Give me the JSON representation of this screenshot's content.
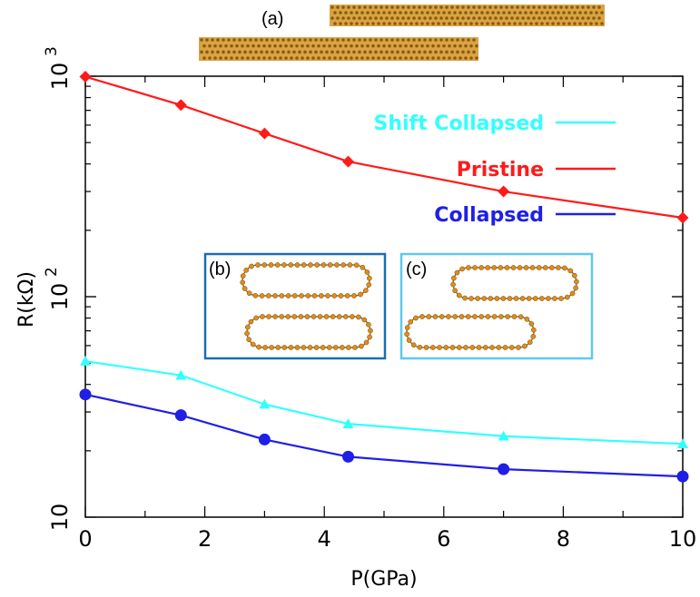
{
  "panel_labels": {
    "a": "(a)",
    "b": "(b)",
    "c": "(c)"
  },
  "colors": {
    "pristine": "#ff1a1a",
    "shift_collapsed": "#33ffff",
    "collapsed": "#1f1fe6",
    "inset_b_border": "#1a6fb0",
    "inset_c_border": "#5ec8ee",
    "atom": "#e08c1a"
  },
  "chart_data": {
    "type": "line",
    "xlabel": "P(GPa)",
    "ylabel": "R(kΩ)",
    "xlim": [
      0,
      10
    ],
    "ylim": [
      10,
      1000
    ],
    "yscale": "log",
    "xticks": [
      {
        "value": 0,
        "label": "0"
      },
      {
        "value": 2,
        "label": "2"
      },
      {
        "value": 4,
        "label": "4"
      },
      {
        "value": 6,
        "label": "6"
      },
      {
        "value": 8,
        "label": "8"
      },
      {
        "value": 10,
        "label": "10"
      }
    ],
    "yticks": [
      {
        "value": 10,
        "label": "10"
      },
      {
        "value": 100,
        "label": "10",
        "exponent": "2"
      },
      {
        "value": 1000,
        "label": "10",
        "exponent": "3"
      }
    ],
    "legend_position": "top-right",
    "series": [
      {
        "name": "Shift Collapsed",
        "key": "shift_collapsed",
        "marker": "triangle",
        "x": [
          0,
          1.6,
          3,
          4.4,
          7,
          10
        ],
        "y": [
          51,
          44,
          32.5,
          26.5,
          23.3,
          21.5
        ]
      },
      {
        "name": "Pristine",
        "key": "pristine",
        "marker": "diamond",
        "x": [
          0,
          1.6,
          3,
          4.4,
          7,
          10
        ],
        "y": [
          995,
          740,
          550,
          410,
          300,
          228
        ]
      },
      {
        "name": "Collapsed",
        "key": "collapsed",
        "marker": "circle",
        "x": [
          0,
          1.6,
          3,
          4.4,
          7,
          10
        ],
        "y": [
          36,
          29,
          22.5,
          18.8,
          16.5,
          15.3
        ]
      }
    ]
  }
}
